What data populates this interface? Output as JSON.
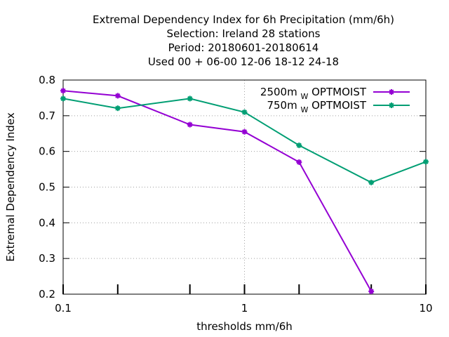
{
  "title_lines": [
    "Extremal Dependency Index  for 6h Precipitation (mm/6h)",
    "Selection: Ireland     28 stations",
    "Period: 20180601-20180614",
    "Used  00 + 06-00 12-06 18-12 24-18"
  ],
  "chart_data": {
    "type": "line",
    "xlabel": "thresholds mm/6h",
    "ylabel": "Extremal Dependency Index",
    "xscale": "log",
    "xlim": [
      0.1,
      10
    ],
    "ylim": [
      0.2,
      0.8
    ],
    "x_tick_labels": [
      "0.1",
      "1",
      "10"
    ],
    "y_tick_labels": [
      "0.2",
      "0.3",
      "0.4",
      "0.5",
      "0.6",
      "0.7",
      "0.8"
    ],
    "grid": true,
    "legend_position": "top-right",
    "series": [
      {
        "name": "2500m",
        "name_sub": "W",
        "name_suffix": "OPTMOIST",
        "color": "#9400d3",
        "x": [
          0.1,
          0.2,
          0.5,
          1,
          2,
          5
        ],
        "y": [
          0.77,
          0.756,
          0.675,
          0.655,
          0.57,
          0.208
        ]
      },
      {
        "name": "750m",
        "name_sub": "W",
        "name_suffix": "OPTMOIST",
        "color": "#009e73",
        "x": [
          0.1,
          0.2,
          0.5,
          1,
          2,
          5,
          10
        ],
        "y": [
          0.748,
          0.721,
          0.748,
          0.71,
          0.617,
          0.513,
          0.571
        ]
      }
    ]
  }
}
